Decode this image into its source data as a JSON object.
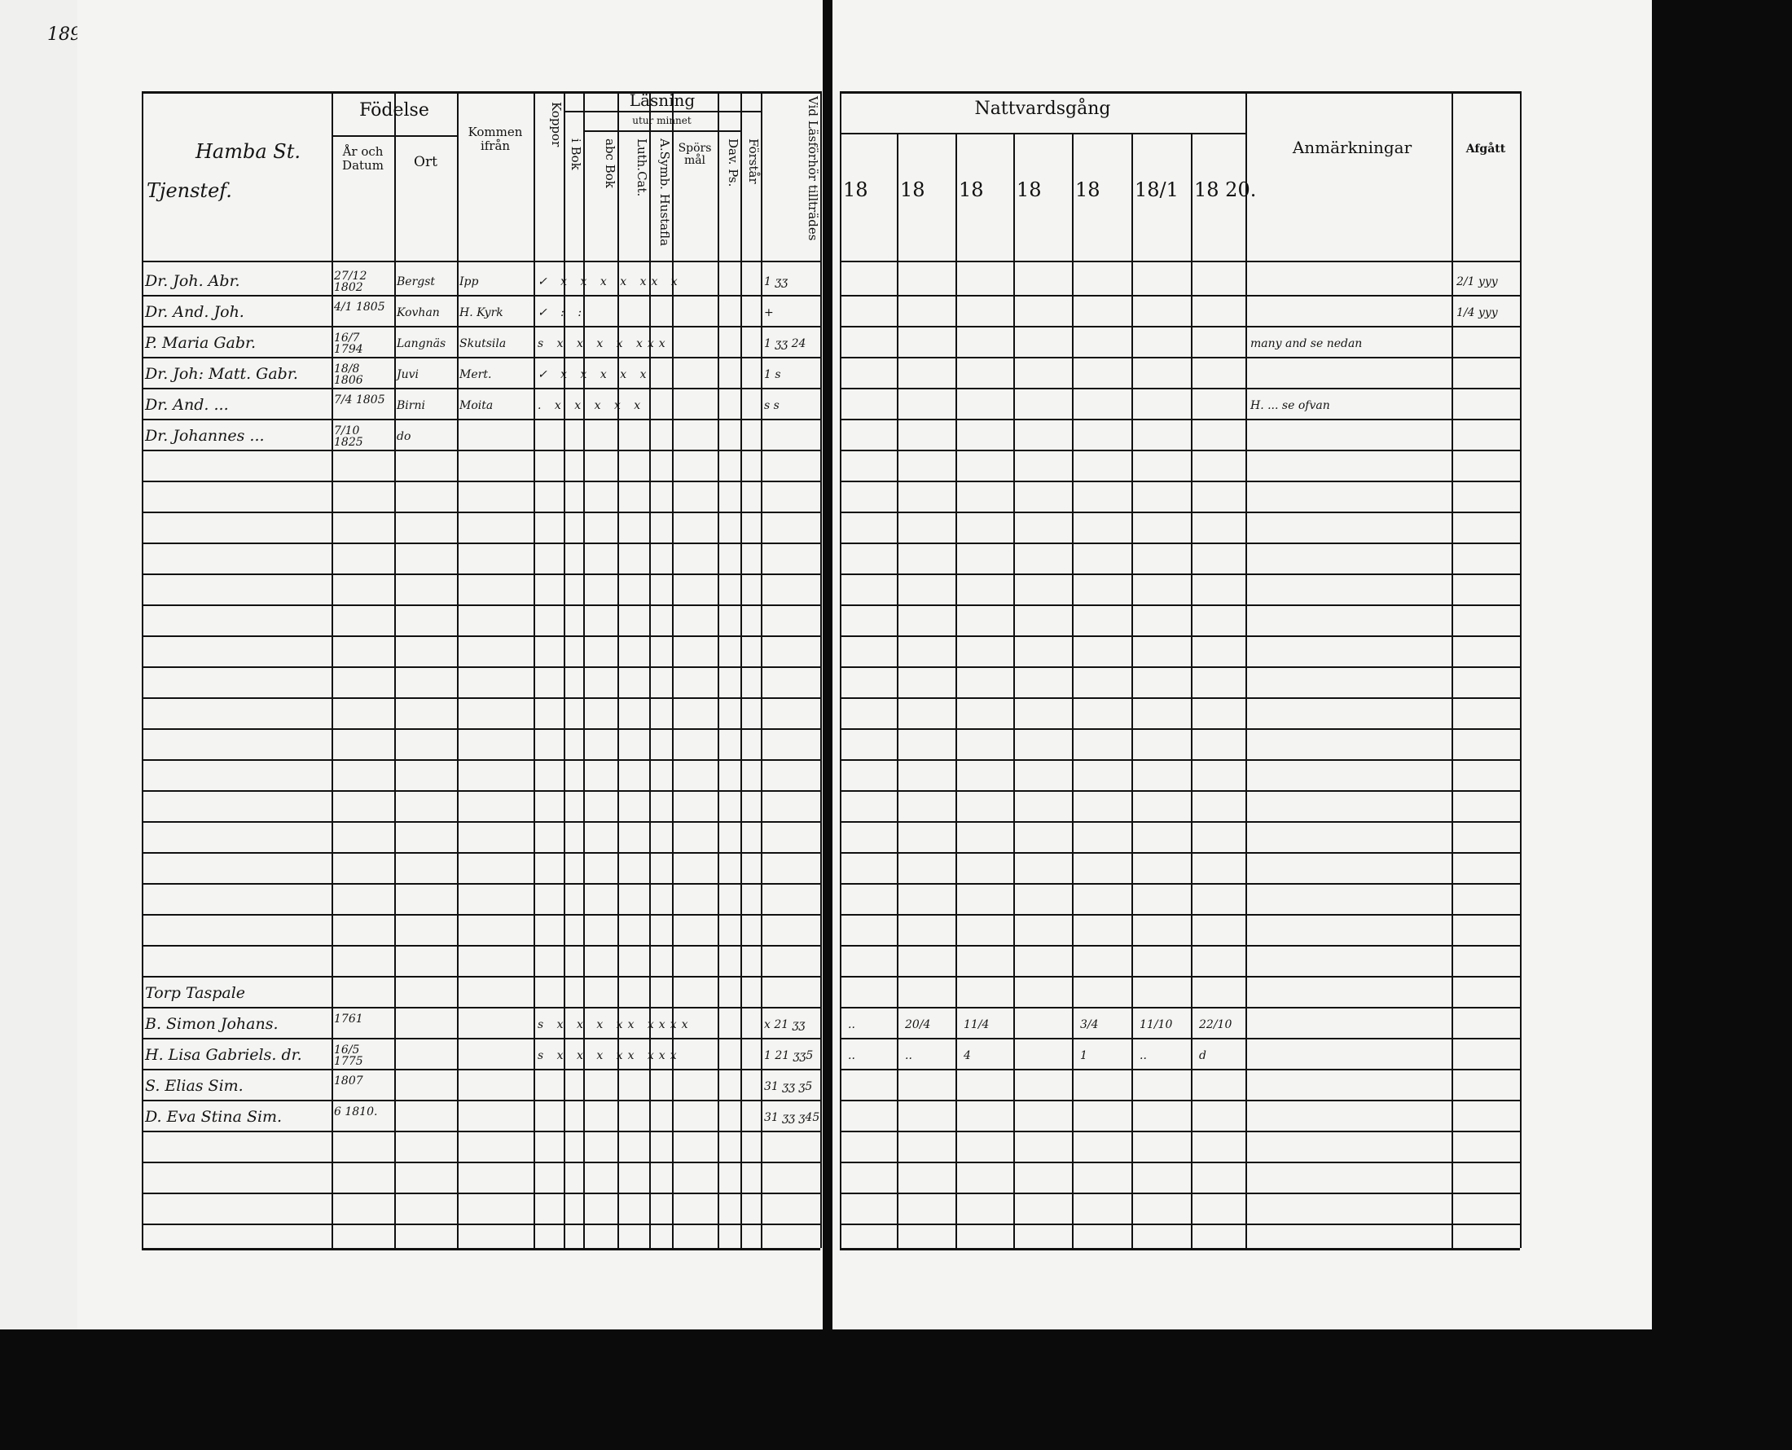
{
  "page_number": "189.",
  "left_table": {
    "name_header_lines": [
      "Hamba St.",
      "Tjenstef."
    ],
    "headers": {
      "fodelse": "Födelse",
      "ar_och_datum": "År och Datum",
      "ort": "Ort",
      "kommen_ifran": "Kommen ifrån",
      "koppor": "Koppor",
      "lasning": "Läsning",
      "utur_minnet": "utur minnet",
      "i_bok": "i Bok",
      "abc_bok": "abc Bok",
      "luth_cat": "Luth.Cat.",
      "a_symb_harda": "A.Symb. Hustafla",
      "sporsmal": "Spörsmål",
      "dav_ps": "Dav. Ps.",
      "forstar": "Förstår",
      "vid_lasforhor": "Vid Läsförhör tillträdes"
    },
    "rows": [
      {
        "name": "Dr. Joh. Abr.",
        "date": "27/12 1802",
        "place": "Bergst",
        "from": "Ipp",
        "marks": "✓ x x x x xx x",
        "right": "1 ʒʒ"
      },
      {
        "name": "Dr. And. Joh.",
        "date": "4/1 1805",
        "place": "Kovhan",
        "from": "H. Kyrk",
        "marks": "✓ : :",
        "right": "+"
      },
      {
        "name": "P. Maria Gabr.",
        "date": "16/7 1794",
        "place": "Langnäs",
        "from": "Skutsila",
        "marks": "s x x x x xxx",
        "right": "1 ʒʒ 24"
      },
      {
        "name": "Dr. Joh: Matt. Gabr.",
        "date": "18/8 1806",
        "place": "Juvi",
        "from": "Mert.",
        "marks": "✓ x x x x x",
        "right": "1 s"
      },
      {
        "name": "Dr. And. ...",
        "date": "7/4 1805",
        "place": "Birni",
        "from": "Moita",
        "marks": ". x x x x x",
        "right": "s s"
      },
      {
        "name": "Dr. Johannes ...",
        "date": "7/10 1825",
        "place": "do",
        "from": "",
        "marks": "",
        "right": ""
      },
      {},
      {},
      {},
      {},
      {},
      {},
      {},
      {},
      {},
      {},
      {},
      {},
      {},
      {},
      {},
      {},
      {},
      {
        "name": "Torp Taspale",
        "date": "",
        "place": "",
        "from": "",
        "marks": "",
        "right": ""
      },
      {
        "name": "B. Simon Johans.",
        "date": "1761",
        "place": "",
        "from": "",
        "marks": "s x x x xx xxxx",
        "right": "x 21 ʒʒ"
      },
      {
        "name": "H. Lisa Gabriels. dr.",
        "date": "16/5 1775",
        "place": "",
        "from": "",
        "marks": "s x x x xx xxx",
        "right": "1 21 ʒʒ5"
      },
      {
        "name": "S. Elias Sim.",
        "date": "1807",
        "place": "",
        "from": "",
        "marks": "",
        "right": "31 ʒʒ ʒ5"
      },
      {
        "name": "D. Eva Stina Sim.",
        "date": "6 1810.",
        "place": "",
        "from": "",
        "marks": "",
        "right": "31 ʒʒ ʒ45"
      }
    ]
  },
  "right_table": {
    "nattvardsgang": "Nattvardsgång",
    "year_headers": [
      "18",
      "18",
      "18",
      "18",
      "18",
      "18/1",
      "18 20."
    ],
    "anmarkningar": "Anmärkningar",
    "afgatt": "Afgått",
    "rows": [
      {
        "remark": "",
        "afgatt": "2/1 yyy"
      },
      {
        "remark": "",
        "afgatt": "1/4 yyy"
      },
      {
        "remark": "many and se nedan",
        "afgatt": ""
      },
      {
        "remark": "",
        "afgatt": ""
      },
      {
        "remark": "H. ... se ofvan",
        "afgatt": ""
      }
    ],
    "lower_marks": [
      {
        "row": "simon",
        "cells": [
          "..",
          "20/4",
          "11/4",
          "",
          "3/4",
          "11/10",
          "22/10"
        ]
      },
      {
        "row": "lisa",
        "cells": [
          "..",
          "..",
          "4",
          "",
          "1",
          "..",
          "d"
        ]
      }
    ]
  }
}
